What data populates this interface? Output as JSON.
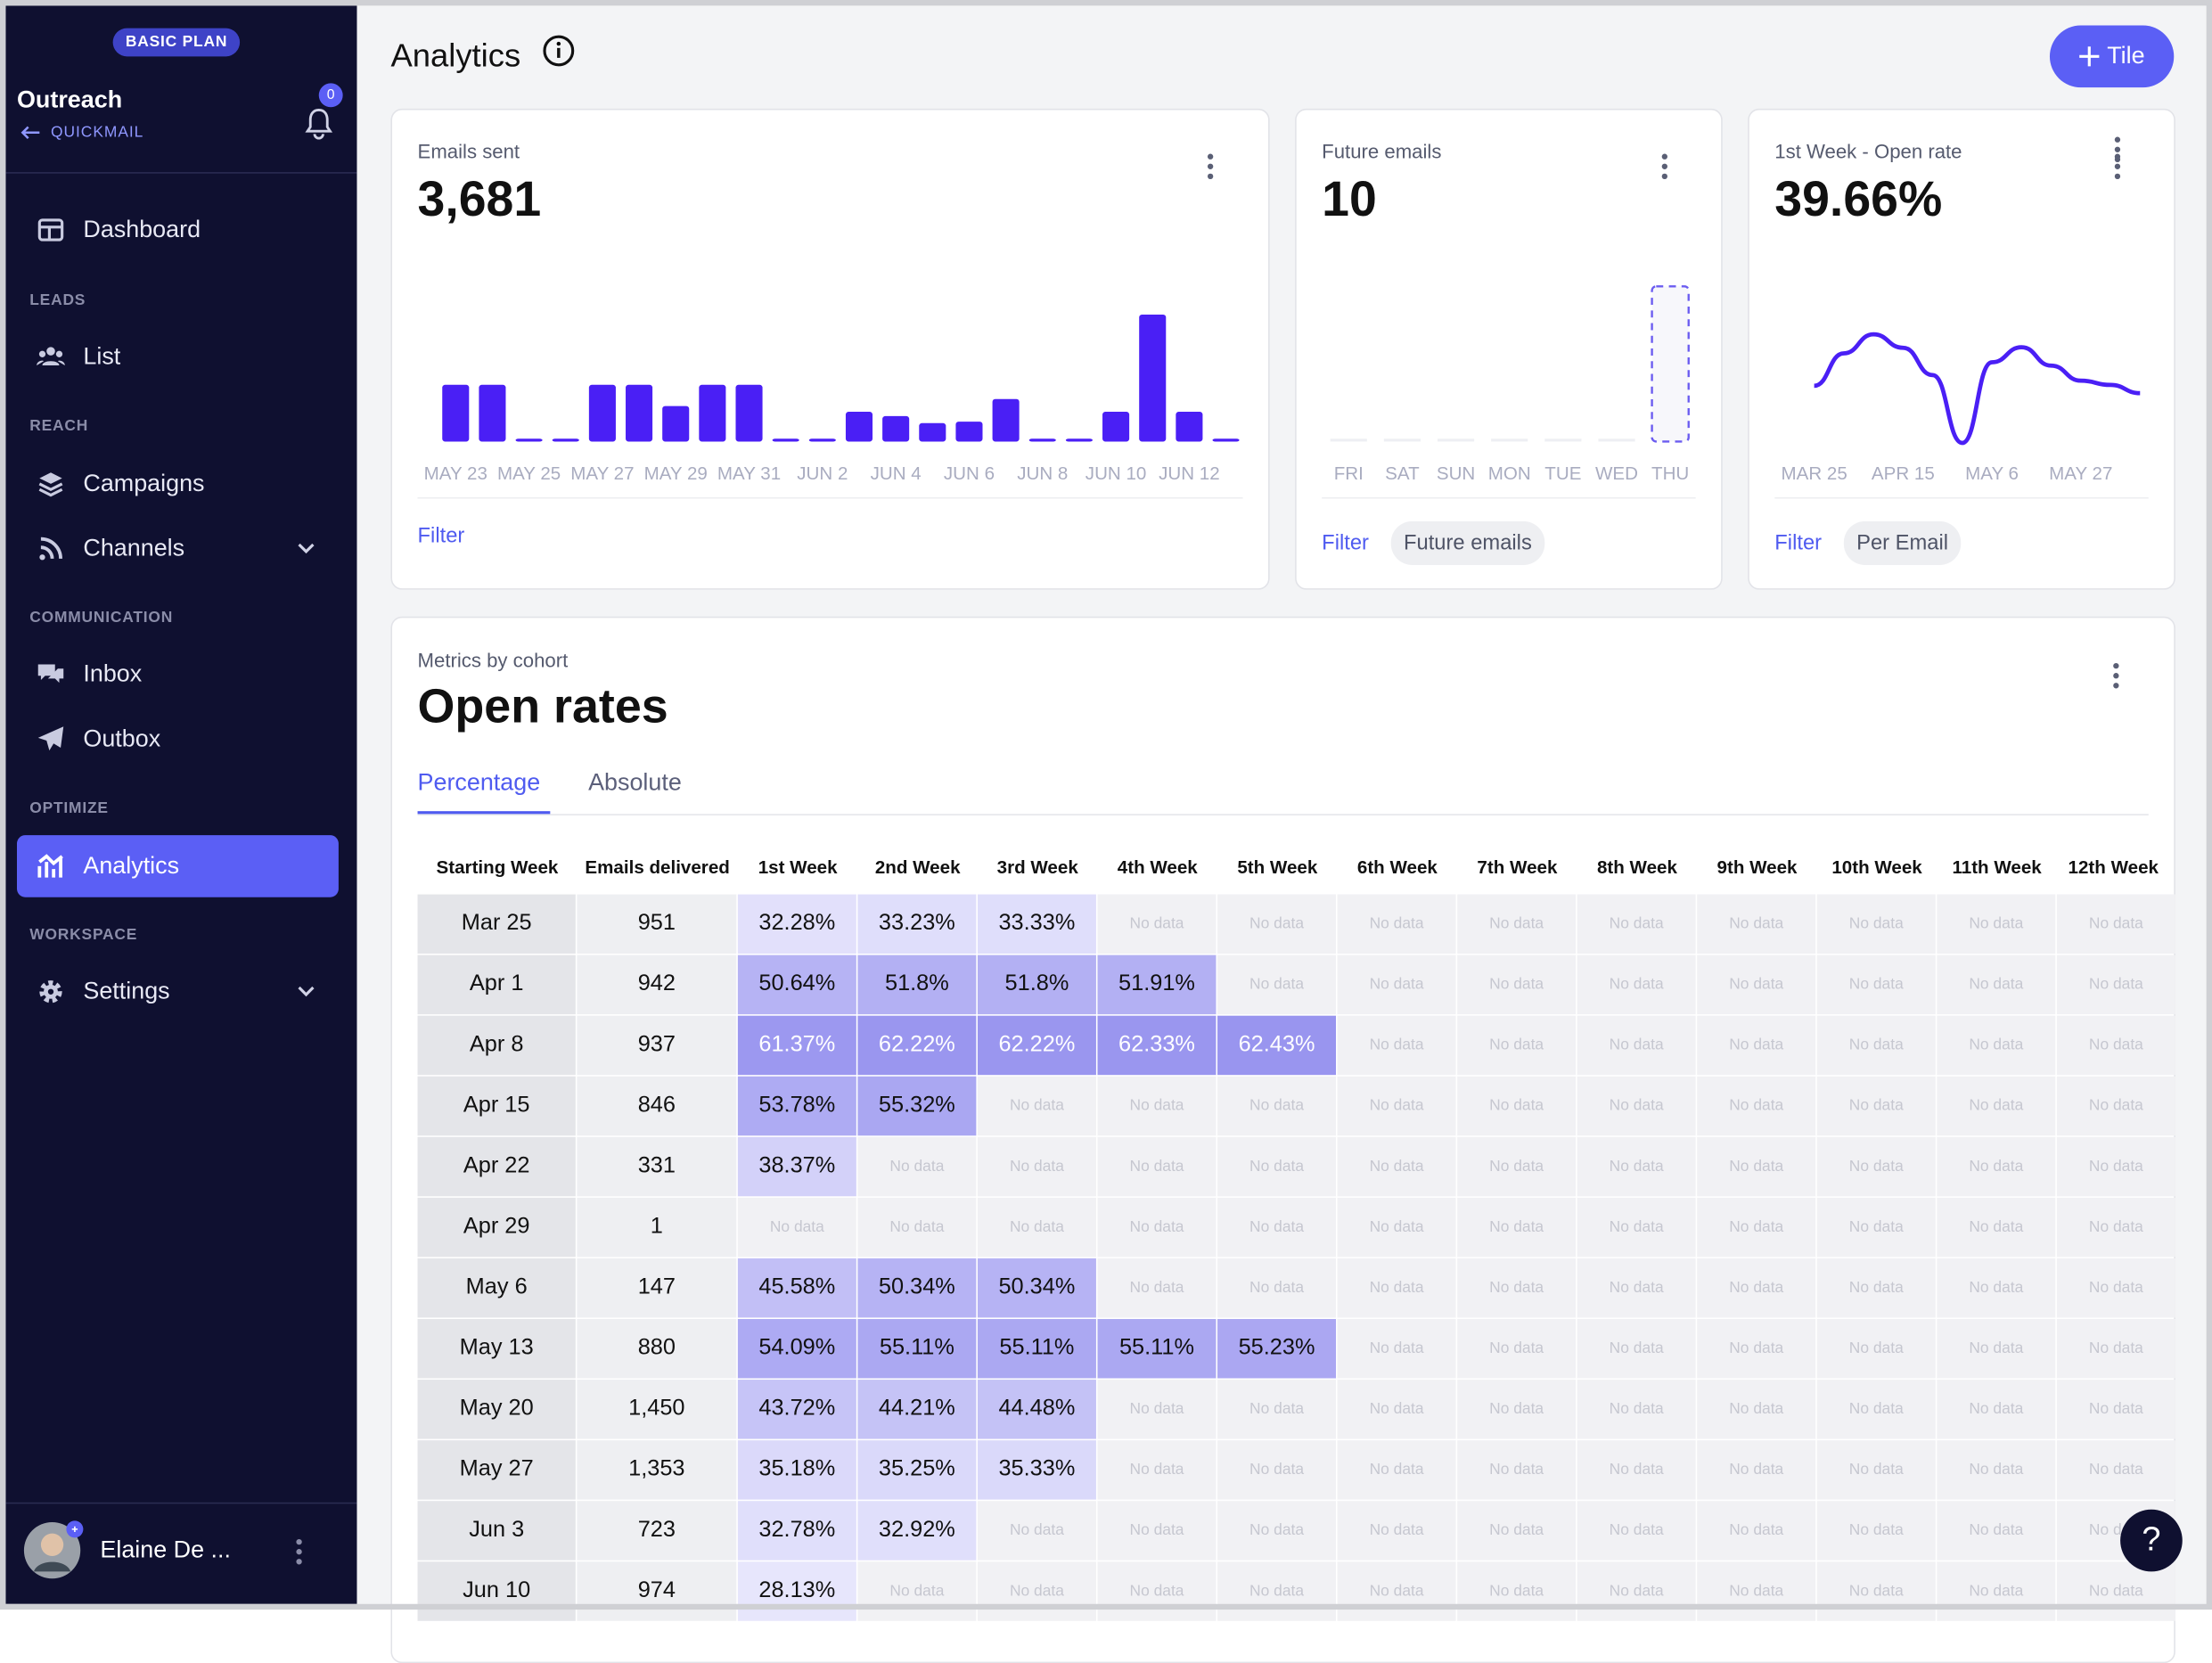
{
  "sidebar": {
    "plan": "BASIC PLAN",
    "workspace": "Outreach",
    "back_link": "QUICKMAIL",
    "notification_count": 0,
    "nav": [
      {
        "items": [
          "Dashboard"
        ]
      },
      {
        "title": "LEADS",
        "items": [
          "List"
        ]
      },
      {
        "title": "REACH",
        "items": [
          "Campaigns",
          "Channels"
        ]
      },
      {
        "title": "COMMUNICATION",
        "items": [
          "Inbox",
          "Outbox"
        ]
      },
      {
        "title": "OPTIMIZE",
        "items": [
          "Analytics"
        ]
      },
      {
        "title": "WORKSPACE",
        "items": [
          "Settings"
        ]
      }
    ],
    "user": "Elaine De ..."
  },
  "header": {
    "title": "Analytics",
    "button": "Tile"
  },
  "tiles": [
    {
      "label": "Emails sent",
      "value": "3,681",
      "filter": "Filter",
      "chart_data": {
        "type": "bar",
        "categories": [
          "MAY 23",
          null,
          "MAY 25",
          null,
          "MAY 27",
          null,
          "MAY 29",
          null,
          "MAY 31",
          null,
          "JUN 2",
          null,
          "JUN 4",
          null,
          "JUN 6",
          null,
          "JUN 8",
          null,
          "JUN 10",
          null,
          "JUN 12",
          null
        ],
        "values": [
          299,
          299,
          0,
          0,
          299,
          299,
          187,
          299,
          299,
          0,
          0,
          157,
          134,
          97,
          105,
          224,
          0,
          0,
          157,
          669,
          157,
          0
        ],
        "color": "#4a1ff5"
      }
    },
    {
      "label": "Future emails",
      "value": "10",
      "filter": "Filter",
      "chip": "Future emails",
      "chart_data": {
        "type": "bar",
        "categories": [
          "FRI",
          "SAT",
          "SUN",
          "MON",
          "TUE",
          "WED",
          "THU"
        ],
        "values": [
          0,
          0,
          0,
          0,
          0,
          0,
          10
        ],
        "color": "#6b5cf0"
      }
    },
    {
      "label": "1st Week - Open rate",
      "value": "39.66%",
      "filter": "Filter",
      "chip": "Per Email",
      "chart_data": {
        "type": "line",
        "categories": [
          "MAR 25",
          null,
          null,
          "APR 15",
          null,
          null,
          "MAY 6",
          null,
          null,
          "MAY 27",
          null,
          null
        ],
        "values": [
          32.28,
          50.64,
          61.37,
          53.78,
          38.37,
          0,
          45.58,
          54.09,
          43.72,
          35.18,
          32.78,
          28.13
        ],
        "color": "#4a1ff5"
      }
    }
  ],
  "cohort": {
    "subtitle": "Metrics by cohort",
    "title": "Open rates",
    "tabs": [
      "Percentage",
      "Absolute"
    ],
    "columns": [
      "Starting Week",
      "Emails delivered",
      "1st Week",
      "2nd Week",
      "3rd Week",
      "4th Week",
      "5th Week",
      "6th Week",
      "7th Week",
      "8th Week",
      "9th Week",
      "10th Week",
      "11th Week",
      "12th Week"
    ],
    "rows": [
      {
        "week": "Mar 25",
        "delivered": "951",
        "values": [
          32.28,
          33.23,
          33.33,
          null,
          null,
          null,
          null,
          null,
          null,
          null,
          null,
          null
        ],
        "value_labels": [
          "32.28%",
          "33.23%",
          "33.33%",
          "No data",
          "No data",
          "No data",
          "No data",
          "No data",
          "No data",
          "No data",
          "No data",
          "No data"
        ]
      },
      {
        "week": "Apr 1",
        "delivered": "942",
        "values": [
          50.64,
          51.8,
          51.8,
          51.91,
          null,
          null,
          null,
          null,
          null,
          null,
          null,
          null
        ],
        "value_labels": [
          "50.64%",
          "51.8%",
          "51.8%",
          "51.91%",
          "No data",
          "No data",
          "No data",
          "No data",
          "No data",
          "No data",
          "No data",
          "No data"
        ]
      },
      {
        "week": "Apr 8",
        "delivered": "937",
        "values": [
          61.37,
          62.22,
          62.22,
          62.33,
          62.43,
          null,
          null,
          null,
          null,
          null,
          null,
          null
        ],
        "value_labels": [
          "61.37%",
          "62.22%",
          "62.22%",
          "62.33%",
          "62.43%",
          "No data",
          "No data",
          "No data",
          "No data",
          "No data",
          "No data",
          "No data"
        ]
      },
      {
        "week": "Apr 15",
        "delivered": "846",
        "values": [
          53.78,
          55.32,
          null,
          null,
          null,
          null,
          null,
          null,
          null,
          null,
          null,
          null
        ],
        "value_labels": [
          "53.78%",
          "55.32%",
          "No data",
          "No data",
          "No data",
          "No data",
          "No data",
          "No data",
          "No data",
          "No data",
          "No data",
          "No data"
        ]
      },
      {
        "week": "Apr 22",
        "delivered": "331",
        "values": [
          38.37,
          null,
          null,
          null,
          null,
          null,
          null,
          null,
          null,
          null,
          null,
          null
        ],
        "value_labels": [
          "38.37%",
          "No data",
          "No data",
          "No data",
          "No data",
          "No data",
          "No data",
          "No data",
          "No data",
          "No data",
          "No data",
          "No data"
        ]
      },
      {
        "week": "Apr 29",
        "delivered": "1",
        "values": [
          null,
          null,
          null,
          null,
          null,
          null,
          null,
          null,
          null,
          null,
          null,
          null
        ],
        "value_labels": [
          "No data",
          "No data",
          "No data",
          "No data",
          "No data",
          "No data",
          "No data",
          "No data",
          "No data",
          "No data",
          "No data",
          "No data"
        ]
      },
      {
        "week": "May 6",
        "delivered": "147",
        "values": [
          45.58,
          50.34,
          50.34,
          null,
          null,
          null,
          null,
          null,
          null,
          null,
          null,
          null
        ],
        "value_labels": [
          "45.58%",
          "50.34%",
          "50.34%",
          "No data",
          "No data",
          "No data",
          "No data",
          "No data",
          "No data",
          "No data",
          "No data",
          "No data"
        ]
      },
      {
        "week": "May 13",
        "delivered": "880",
        "values": [
          54.09,
          55.11,
          55.11,
          55.11,
          55.23,
          null,
          null,
          null,
          null,
          null,
          null,
          null
        ],
        "value_labels": [
          "54.09%",
          "55.11%",
          "55.11%",
          "55.11%",
          "55.23%",
          "No data",
          "No data",
          "No data",
          "No data",
          "No data",
          "No data",
          "No data"
        ]
      },
      {
        "week": "May 20",
        "delivered": "1,450",
        "values": [
          43.72,
          44.21,
          44.48,
          null,
          null,
          null,
          null,
          null,
          null,
          null,
          null,
          null
        ],
        "value_labels": [
          "43.72%",
          "44.21%",
          "44.48%",
          "No data",
          "No data",
          "No data",
          "No data",
          "No data",
          "No data",
          "No data",
          "No data",
          "No data"
        ]
      },
      {
        "week": "May 27",
        "delivered": "1,353",
        "values": [
          35.18,
          35.25,
          35.33,
          null,
          null,
          null,
          null,
          null,
          null,
          null,
          null,
          null
        ],
        "value_labels": [
          "35.18%",
          "35.25%",
          "35.33%",
          "No data",
          "No data",
          "No data",
          "No data",
          "No data",
          "No data",
          "No data",
          "No data",
          "No data"
        ]
      },
      {
        "week": "Jun 3",
        "delivered": "723",
        "values": [
          32.78,
          32.92,
          null,
          null,
          null,
          null,
          null,
          null,
          null,
          null,
          null,
          null
        ],
        "value_labels": [
          "32.78%",
          "32.92%",
          "No data",
          "No data",
          "No data",
          "No data",
          "No data",
          "No data",
          "No data",
          "No data",
          "No data",
          "No data"
        ]
      },
      {
        "week": "Jun 10",
        "delivered": "974",
        "values": [
          28.13,
          null,
          null,
          null,
          null,
          null,
          null,
          null,
          null,
          null,
          null,
          null
        ],
        "value_labels": [
          "28.13%",
          "No data",
          "No data",
          "No data",
          "No data",
          "No data",
          "No data",
          "No data",
          "No data",
          "No data",
          "No data",
          "No data"
        ]
      }
    ]
  },
  "help": "?"
}
